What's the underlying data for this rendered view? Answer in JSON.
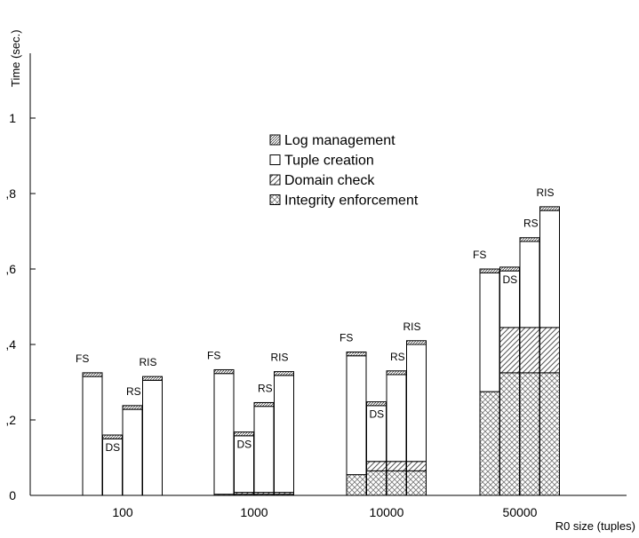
{
  "chart_data": {
    "type": "bar",
    "stacked": true,
    "ylabel": "Time (sec.)",
    "xlabel": "R0 size (tuples)",
    "ylim": [
      0,
      1.2
    ],
    "yticks": [
      {
        "value": 0,
        "label": "0"
      },
      {
        "value": 0.2,
        "label": ",2"
      },
      {
        "value": 0.4,
        "label": ",4"
      },
      {
        "value": 0.6,
        "label": ",6"
      },
      {
        "value": 0.8,
        "label": ",8"
      },
      {
        "value": 1.0,
        "label": "1"
      }
    ],
    "grid": false,
    "legend_position": "top-center",
    "categories": [
      "100",
      "1000",
      "10000",
      "50000"
    ],
    "bar_labels": [
      "FS",
      "DS",
      "RS",
      "RIS"
    ],
    "series": [
      {
        "name": "Integrity enforcement",
        "pattern": "crosshatch",
        "values": [
          [
            0,
            0,
            0,
            0
          ],
          [
            0.003,
            0.003,
            0.003,
            0.003
          ],
          [
            0.055,
            0.065,
            0.065,
            0.065
          ],
          [
            0.275,
            0.325,
            0.325,
            0.325
          ]
        ]
      },
      {
        "name": "Domain check",
        "pattern": "diagonal",
        "values": [
          [
            0,
            0,
            0,
            0
          ],
          [
            0,
            0.005,
            0.005,
            0.005
          ],
          [
            0,
            0.025,
            0.025,
            0.025
          ],
          [
            0,
            0.12,
            0.12,
            0.12
          ]
        ]
      },
      {
        "name": "Tuple creation",
        "pattern": "empty",
        "values": [
          [
            0.315,
            0.15,
            0.228,
            0.305
          ],
          [
            0.32,
            0.15,
            0.228,
            0.31
          ],
          [
            0.315,
            0.148,
            0.23,
            0.31
          ],
          [
            0.315,
            0.15,
            0.228,
            0.31
          ]
        ]
      },
      {
        "name": "Log management",
        "pattern": "dense",
        "values": [
          [
            0.01,
            0.01,
            0.01,
            0.01
          ],
          [
            0.01,
            0.01,
            0.01,
            0.01
          ],
          [
            0.01,
            0.01,
            0.01,
            0.01
          ],
          [
            0.01,
            0.01,
            0.01,
            0.01
          ]
        ]
      }
    ],
    "legend_order": [
      "Log management",
      "Tuple creation",
      "Domain check",
      "Integrity enforcement"
    ],
    "colors": {
      "stroke": "#000000",
      "fill": "#ffffff",
      "pattern": "#555555"
    }
  }
}
